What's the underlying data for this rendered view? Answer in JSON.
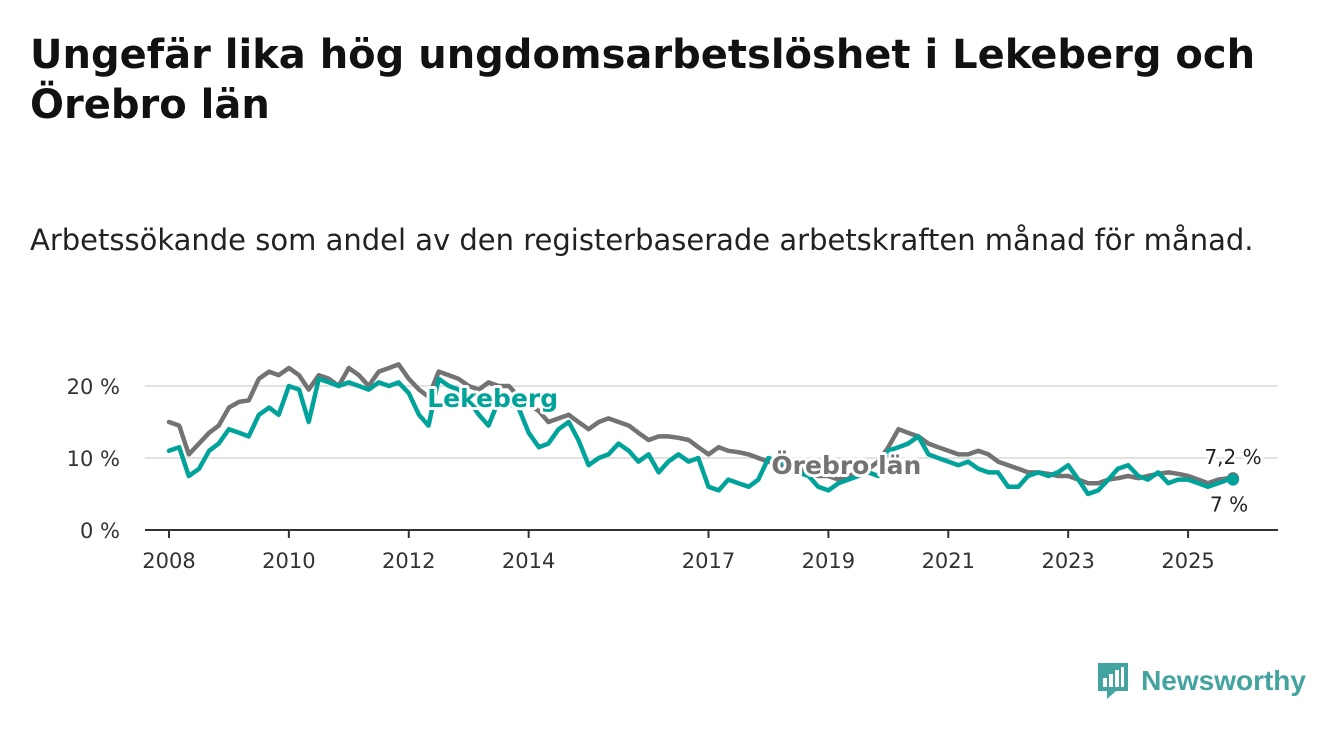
{
  "title": "Ungefär lika hög ungdomsarbetslöshet i Lekeberg och Örebro län",
  "subtitle": "Arbetssökande som andel av den registerbaserade arbetskraften månad för månad.",
  "brand": {
    "name": "Newsworthy",
    "color": "#43a39e"
  },
  "chart_data": {
    "type": "line",
    "title": "",
    "xlabel": "",
    "ylabel": "",
    "ylim": [
      0,
      25
    ],
    "xlim": [
      2007.6,
      2026.5
    ],
    "y_ticks": [
      0,
      10,
      20
    ],
    "y_tick_labels": [
      "0 %",
      "10 %",
      "20 %"
    ],
    "x_ticks": [
      2008,
      2010,
      2012,
      2014,
      2017,
      2019,
      2021,
      2023,
      2025
    ],
    "x_tick_labels": [
      "2008",
      "2010",
      "2012",
      "2014",
      "2017",
      "2019",
      "2021",
      "2023",
      "2025"
    ],
    "grid": true,
    "series": [
      {
        "name": "Örebro län",
        "label": "Örebro län",
        "color": "#737373",
        "end_label": "7,2 %",
        "x": [
          2008.0,
          2008.17,
          2008.33,
          2008.5,
          2008.67,
          2008.83,
          2009.0,
          2009.17,
          2009.33,
          2009.5,
          2009.67,
          2009.83,
          2010.0,
          2010.17,
          2010.33,
          2010.5,
          2010.67,
          2010.83,
          2011.0,
          2011.17,
          2011.33,
          2011.5,
          2011.67,
          2011.83,
          2012.0,
          2012.17,
          2012.33,
          2012.5,
          2012.67,
          2012.83,
          2013.0,
          2013.17,
          2013.33,
          2013.5,
          2013.67,
          2013.83,
          2014.0,
          2014.17,
          2014.33,
          2014.5,
          2014.67,
          2014.83,
          2015.0,
          2015.17,
          2015.33,
          2015.5,
          2015.67,
          2015.83,
          2016.0,
          2016.17,
          2016.33,
          2016.5,
          2016.67,
          2016.83,
          2017.0,
          2017.17,
          2017.33,
          2017.5,
          2017.67,
          2017.83,
          2018.0,
          2018.17,
          2018.33,
          2018.5,
          2018.67,
          2018.83,
          2019.0,
          2019.17,
          2019.33,
          2019.5,
          2019.67,
          2019.83,
          2020.0,
          2020.17,
          2020.33,
          2020.5,
          2020.67,
          2020.83,
          2021.0,
          2021.17,
          2021.33,
          2021.5,
          2021.67,
          2021.83,
          2022.0,
          2022.17,
          2022.33,
          2022.5,
          2022.67,
          2022.83,
          2023.0,
          2023.17,
          2023.33,
          2023.5,
          2023.67,
          2023.83,
          2024.0,
          2024.17,
          2024.33,
          2024.5,
          2024.67,
          2024.83,
          2025.0,
          2025.17,
          2025.33,
          2025.5,
          2025.67,
          2025.75
        ],
        "values": [
          15.0,
          14.5,
          10.5,
          12.0,
          13.5,
          14.5,
          17.0,
          17.8,
          18.0,
          21.0,
          22.0,
          21.5,
          22.5,
          21.5,
          19.5,
          21.5,
          21.0,
          20.0,
          22.5,
          21.5,
          20.0,
          22.0,
          22.5,
          23.0,
          21.0,
          19.5,
          18.5,
          22.0,
          21.5,
          21.0,
          20.0,
          19.5,
          20.5,
          20.0,
          20.0,
          18.5,
          17.5,
          16.5,
          15.0,
          15.5,
          16.0,
          15.0,
          14.0,
          15.0,
          15.5,
          15.0,
          14.5,
          13.5,
          12.5,
          13.0,
          13.0,
          12.8,
          12.5,
          11.5,
          10.5,
          11.5,
          11.0,
          10.8,
          10.5,
          10.0,
          9.5,
          9.0,
          9.0,
          8.5,
          8.0,
          7.5,
          7.5,
          7.0,
          7.5,
          8.0,
          8.5,
          9.5,
          11.5,
          14.0,
          13.5,
          13.0,
          12.0,
          11.5,
          11.0,
          10.5,
          10.5,
          11.0,
          10.5,
          9.5,
          9.0,
          8.5,
          8.0,
          8.0,
          7.8,
          7.5,
          7.5,
          7.0,
          6.5,
          6.5,
          7.0,
          7.2,
          7.5,
          7.2,
          7.5,
          7.8,
          8.0,
          7.8,
          7.5,
          7.0,
          6.5,
          7.0,
          7.2,
          7.2
        ]
      },
      {
        "name": "Lekeberg",
        "label": "Lekeberg",
        "color": "#00a39a",
        "end_label": "7 %",
        "x": [
          2008.0,
          2008.17,
          2008.33,
          2008.5,
          2008.67,
          2008.83,
          2009.0,
          2009.17,
          2009.33,
          2009.5,
          2009.67,
          2009.83,
          2010.0,
          2010.17,
          2010.33,
          2010.5,
          2010.67,
          2010.83,
          2011.0,
          2011.17,
          2011.33,
          2011.5,
          2011.67,
          2011.83,
          2012.0,
          2012.17,
          2012.33,
          2012.5,
          2012.67,
          2012.83,
          2013.0,
          2013.17,
          2013.33,
          2013.5,
          2013.67,
          2013.83,
          2014.0,
          2014.17,
          2014.33,
          2014.5,
          2014.67,
          2014.83,
          2015.0,
          2015.17,
          2015.33,
          2015.5,
          2015.67,
          2015.83,
          2016.0,
          2016.17,
          2016.33,
          2016.5,
          2016.67,
          2016.83,
          2017.0,
          2017.17,
          2017.33,
          2017.5,
          2017.67,
          2017.83,
          2018.0,
          2018.17,
          2018.33,
          2018.5,
          2018.67,
          2018.83,
          2019.0,
          2019.17,
          2019.33,
          2019.5,
          2019.67,
          2019.83,
          2020.0,
          2020.17,
          2020.33,
          2020.5,
          2020.67,
          2020.83,
          2021.0,
          2021.17,
          2021.33,
          2021.5,
          2021.67,
          2021.83,
          2022.0,
          2022.17,
          2022.33,
          2022.5,
          2022.67,
          2022.83,
          2023.0,
          2023.17,
          2023.33,
          2023.5,
          2023.67,
          2023.83,
          2024.0,
          2024.17,
          2024.33,
          2024.5,
          2024.67,
          2024.83,
          2025.0,
          2025.17,
          2025.33,
          2025.5,
          2025.67,
          2025.75
        ],
        "values": [
          11.0,
          11.5,
          7.5,
          8.5,
          11.0,
          12.0,
          14.0,
          13.5,
          13.0,
          16.0,
          17.0,
          16.0,
          20.0,
          19.5,
          15.0,
          21.0,
          20.5,
          20.0,
          20.5,
          20.0,
          19.5,
          20.5,
          20.0,
          20.5,
          19.0,
          16.0,
          14.5,
          21.0,
          20.0,
          19.5,
          18.0,
          16.0,
          14.5,
          18.0,
          17.5,
          17.0,
          13.5,
          11.5,
          12.0,
          14.0,
          15.0,
          12.5,
          9.0,
          10.0,
          10.5,
          12.0,
          11.0,
          9.5,
          10.5,
          8.0,
          9.5,
          10.5,
          9.5,
          10.0,
          6.0,
          5.5,
          7.0,
          6.5,
          6.0,
          7.0,
          10.0,
          9.5,
          9.0,
          8.0,
          7.5,
          6.0,
          5.5,
          6.5,
          7.0,
          7.5,
          8.0,
          7.5,
          11.0,
          11.5,
          12.0,
          13.0,
          10.5,
          10.0,
          9.5,
          9.0,
          9.5,
          8.5,
          8.0,
          8.0,
          6.0,
          6.0,
          7.5,
          8.0,
          7.5,
          8.0,
          9.0,
          7.0,
          5.0,
          5.5,
          7.0,
          8.5,
          9.0,
          7.5,
          7.0,
          8.0,
          6.5,
          7.0,
          7.0,
          6.5,
          6.0,
          6.5,
          7.0,
          7.0
        ]
      }
    ]
  }
}
